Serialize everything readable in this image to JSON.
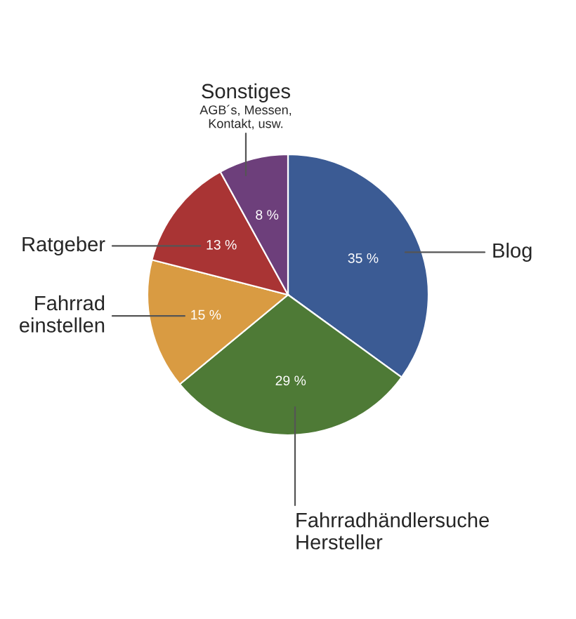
{
  "chart_data": {
    "type": "pie",
    "categories": [
      "Blog",
      "Fahrradhändlersuche\nHersteller",
      "Fahrrad\neinstellen",
      "Ratgeber",
      "Sonstiges"
    ],
    "values": [
      35,
      29,
      15,
      13,
      8
    ],
    "colors": [
      "#3b5b94",
      "#4e7a36",
      "#d99b42",
      "#a93434",
      "#6d3f7b"
    ],
    "value_labels": [
      "35 %",
      "29 %",
      "15 %",
      "13 %",
      "8 %"
    ],
    "annotations": [
      "AGB´s, Messen,\nKontakt, usw."
    ]
  }
}
